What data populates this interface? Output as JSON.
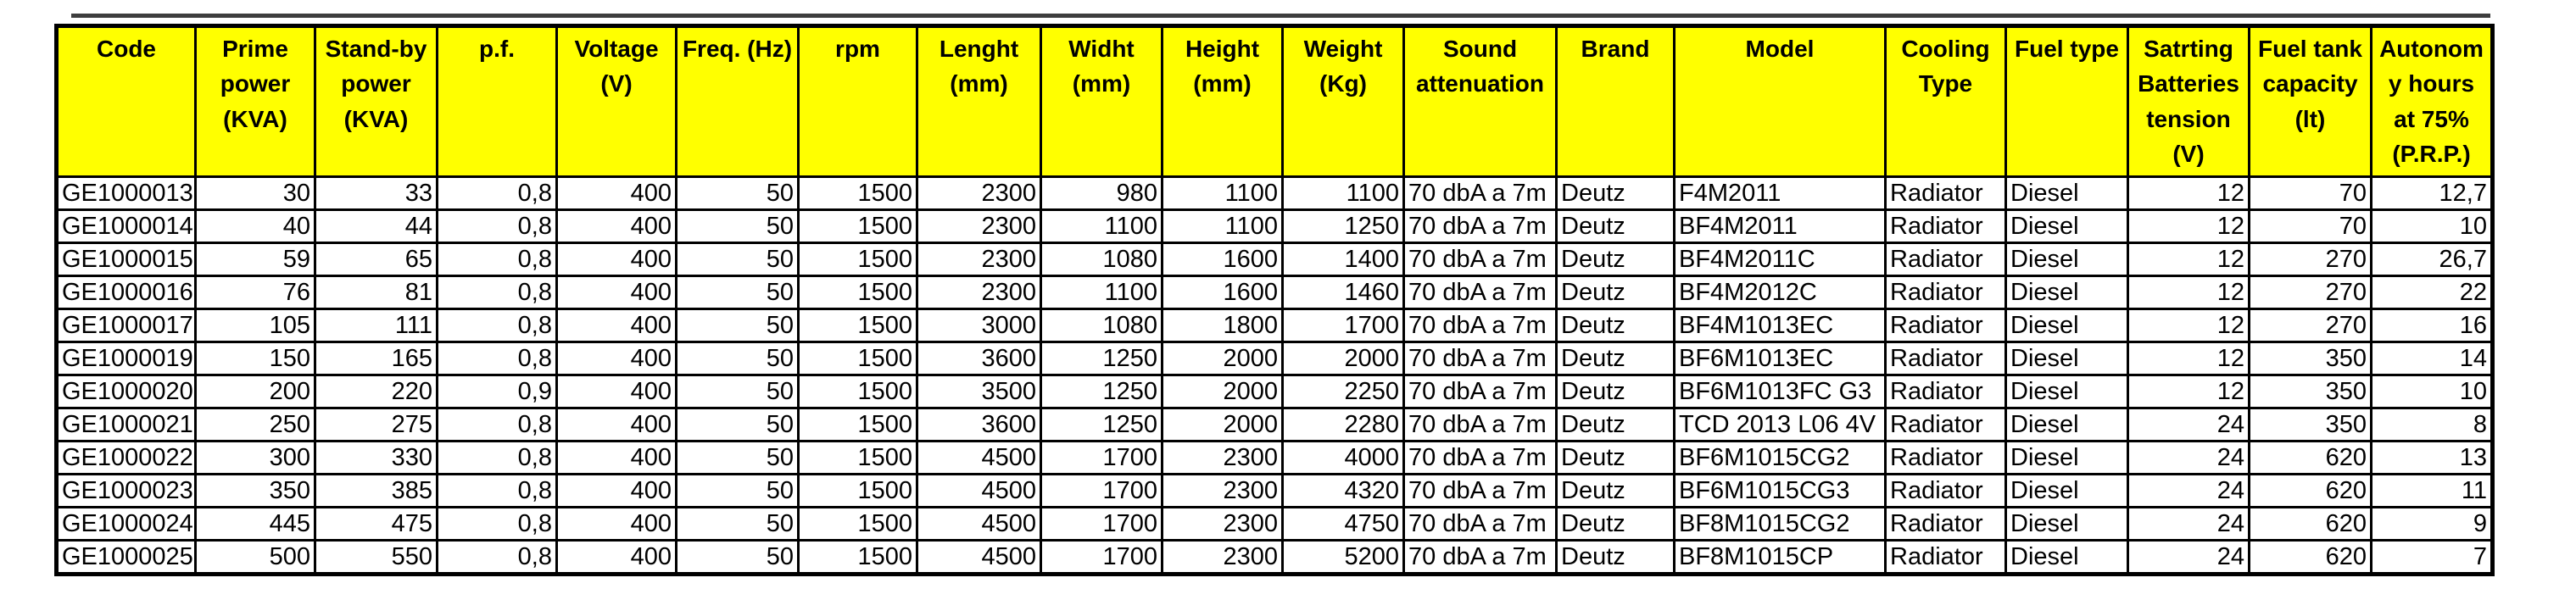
{
  "colors": {
    "header_background": "#FFFF00",
    "border": "#000000",
    "text": "#000000",
    "row_background": "#FFFFFF"
  },
  "table": {
    "columns": [
      {
        "key": "code",
        "label": "Code",
        "align": "left"
      },
      {
        "key": "prime_power",
        "label": "Prime power (KVA)",
        "align": "right"
      },
      {
        "key": "standby_power",
        "label": "Stand-by power (KVA)",
        "align": "right"
      },
      {
        "key": "pf",
        "label": "p.f.",
        "align": "right"
      },
      {
        "key": "voltage",
        "label": "Voltage (V)",
        "align": "right"
      },
      {
        "key": "frequency",
        "label": "Freq. (Hz)",
        "align": "right"
      },
      {
        "key": "rpm",
        "label": "rpm",
        "align": "right"
      },
      {
        "key": "length",
        "label": "Lenght (mm)",
        "align": "right"
      },
      {
        "key": "width",
        "label": "Widht (mm)",
        "align": "right"
      },
      {
        "key": "height",
        "label": "Height (mm)",
        "align": "right"
      },
      {
        "key": "weight",
        "label": "Weight (Kg)",
        "align": "right"
      },
      {
        "key": "sound",
        "label": "Sound attenuation",
        "align": "left"
      },
      {
        "key": "brand",
        "label": "Brand",
        "align": "left"
      },
      {
        "key": "model",
        "label": "Model",
        "align": "left"
      },
      {
        "key": "cooling",
        "label": "Cooling Type",
        "align": "left"
      },
      {
        "key": "fuel_type",
        "label": "Fuel type",
        "align": "left"
      },
      {
        "key": "battery_tension",
        "label": "Satrting Batteries tension (V)",
        "align": "right"
      },
      {
        "key": "tank_capacity",
        "label": "Fuel tank capacity (lt)",
        "align": "right"
      },
      {
        "key": "autonomy",
        "label": "Autonomy hours at 75% (P.R.P.)",
        "align": "right"
      }
    ],
    "rows": [
      [
        "GE1000013",
        "30",
        "33",
        "0,8",
        "400",
        "50",
        "1500",
        "2300",
        "980",
        "1100",
        "1100",
        "70 dbA a 7m",
        "Deutz",
        "F4M2011",
        "Radiator",
        "Diesel",
        "12",
        "70",
        "12,7"
      ],
      [
        "GE1000014",
        "40",
        "44",
        "0,8",
        "400",
        "50",
        "1500",
        "2300",
        "1100",
        "1100",
        "1250",
        "70 dbA a 7m",
        "Deutz",
        "BF4M2011",
        "Radiator",
        "Diesel",
        "12",
        "70",
        "10"
      ],
      [
        "GE1000015",
        "59",
        "65",
        "0,8",
        "400",
        "50",
        "1500",
        "2300",
        "1080",
        "1600",
        "1400",
        "70 dbA a 7m",
        "Deutz",
        "BF4M2011C",
        "Radiator",
        "Diesel",
        "12",
        "270",
        "26,7"
      ],
      [
        "GE1000016",
        "76",
        "81",
        "0,8",
        "400",
        "50",
        "1500",
        "2300",
        "1100",
        "1600",
        "1460",
        "70 dbA a 7m",
        "Deutz",
        "BF4M2012C",
        "Radiator",
        "Diesel",
        "12",
        "270",
        "22"
      ],
      [
        "GE1000017",
        "105",
        "111",
        "0,8",
        "400",
        "50",
        "1500",
        "3000",
        "1080",
        "1800",
        "1700",
        "70 dbA a 7m",
        "Deutz",
        "BF4M1013EC",
        "Radiator",
        "Diesel",
        "12",
        "270",
        "16"
      ],
      [
        "GE1000019",
        "150",
        "165",
        "0,8",
        "400",
        "50",
        "1500",
        "3600",
        "1250",
        "2000",
        "2000",
        "70 dbA a 7m",
        "Deutz",
        "BF6M1013EC",
        "Radiator",
        "Diesel",
        "12",
        "350",
        "14"
      ],
      [
        "GE1000020",
        "200",
        "220",
        "0,9",
        "400",
        "50",
        "1500",
        "3500",
        "1250",
        "2000",
        "2250",
        "70 dbA a 7m",
        "Deutz",
        "BF6M1013FC G3",
        "Radiator",
        "Diesel",
        "12",
        "350",
        "10"
      ],
      [
        "GE1000021",
        "250",
        "275",
        "0,8",
        "400",
        "50",
        "1500",
        "3600",
        "1250",
        "2000",
        "2280",
        "70 dbA a 7m",
        "Deutz",
        "TCD 2013 L06 4V",
        "Radiator",
        "Diesel",
        "24",
        "350",
        "8"
      ],
      [
        "GE1000022",
        "300",
        "330",
        "0,8",
        "400",
        "50",
        "1500",
        "4500",
        "1700",
        "2300",
        "4000",
        "70 dbA a 7m",
        "Deutz",
        "BF6M1015CG2",
        "Radiator",
        "Diesel",
        "24",
        "620",
        "13"
      ],
      [
        "GE1000023",
        "350",
        "385",
        "0,8",
        "400",
        "50",
        "1500",
        "4500",
        "1700",
        "2300",
        "4320",
        "70 dbA a 7m",
        "Deutz",
        "BF6M1015CG3",
        "Radiator",
        "Diesel",
        "24",
        "620",
        "11"
      ],
      [
        "GE1000024",
        "445",
        "475",
        "0,8",
        "400",
        "50",
        "1500",
        "4500",
        "1700",
        "2300",
        "4750",
        "70 dbA a 7m",
        "Deutz",
        "BF8M1015CG2",
        "Radiator",
        "Diesel",
        "24",
        "620",
        "9"
      ],
      [
        "GE1000025",
        "500",
        "550",
        "0,8",
        "400",
        "50",
        "1500",
        "4500",
        "1700",
        "2300",
        "5200",
        "70 dbA a 7m",
        "Deutz",
        "BF8M1015CP",
        "Radiator",
        "Diesel",
        "24",
        "620",
        "7"
      ]
    ]
  }
}
